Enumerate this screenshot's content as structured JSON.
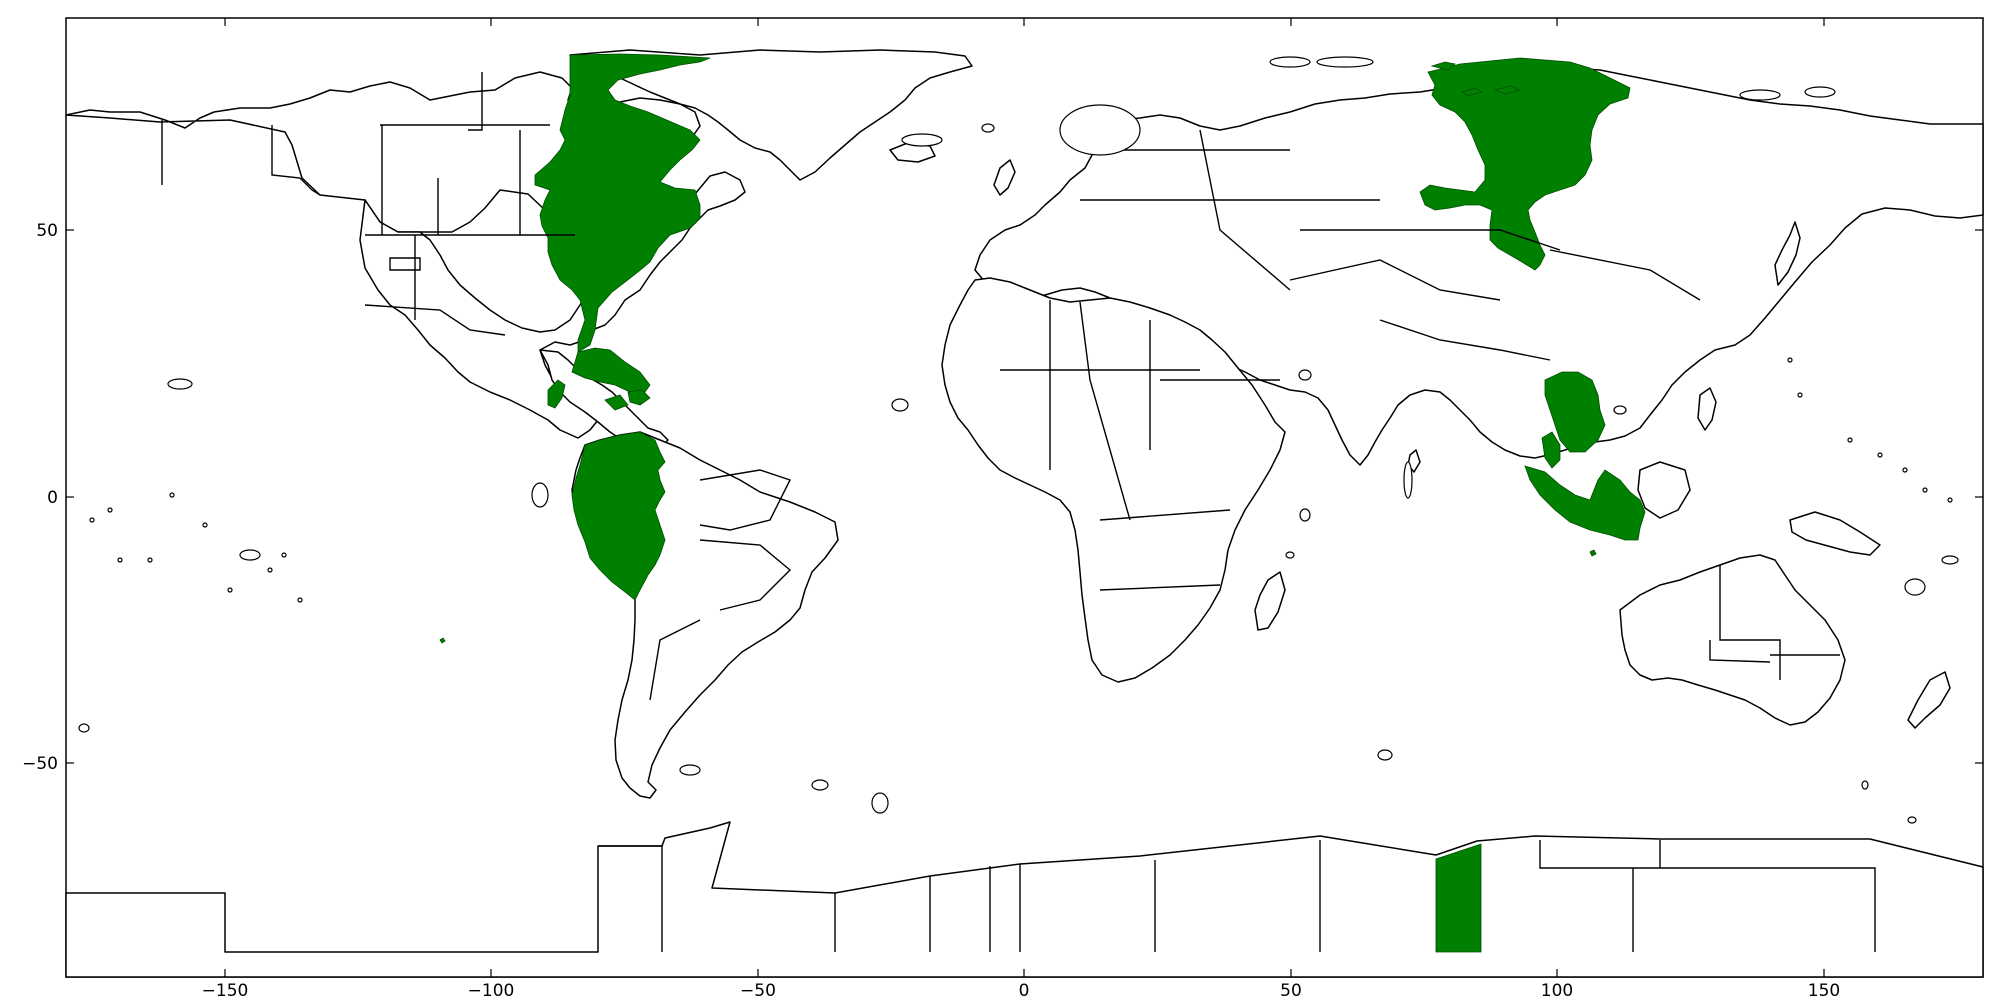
{
  "map": {
    "highlight_color": "#008000",
    "land_fill": "#ffffff",
    "outline_color": "#000000",
    "x_axis": {
      "ticks": [
        -150,
        -100,
        -50,
        0,
        50,
        100,
        150
      ]
    },
    "y_axis": {
      "ticks": [
        50,
        0,
        -50
      ]
    },
    "x_tick_labels": [
      "−150",
      "−100",
      "−50",
      "0",
      "50",
      "100",
      "150"
    ],
    "y_tick_labels": [
      "50",
      "0",
      "−50"
    ]
  }
}
